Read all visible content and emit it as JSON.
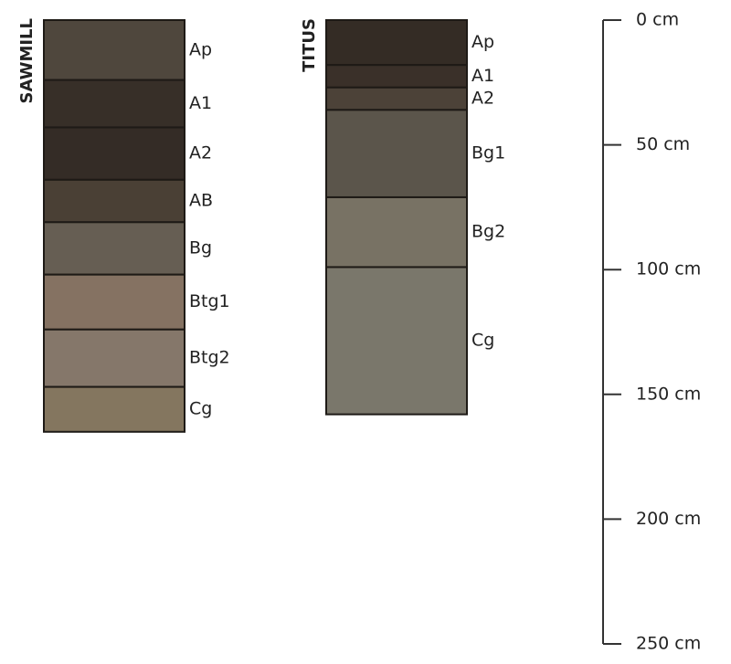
{
  "chart_data": {
    "type": "profile",
    "ylim": [
      0,
      250
    ],
    "yticks": [
      {
        "value": 0,
        "label": "0 cm"
      },
      {
        "value": 50,
        "label": "50 cm"
      },
      {
        "value": 100,
        "label": "100 cm"
      },
      {
        "value": 150,
        "label": "150 cm"
      },
      {
        "value": 200,
        "label": "200 cm"
      },
      {
        "value": 250,
        "label": "250 cm"
      }
    ],
    "series": [
      {
        "name": "SAWMILL",
        "horizons": [
          "Ap",
          "A1",
          "A2",
          "AB",
          "Bg",
          "Btg1",
          "Btg2",
          "Cg"
        ],
        "boundaries": [
          0,
          24,
          43,
          64,
          81,
          102,
          124,
          147,
          165
        ],
        "colors": [
          "#4f473d",
          "#372f28",
          "#342c26",
          "#4a4035",
          "#665e53",
          "#857262",
          "#85776a",
          "#84765f"
        ]
      },
      {
        "name": "TITUS",
        "horizons": [
          "Ap",
          "A1",
          "A2",
          "Bg1",
          "Bg2",
          "Cg"
        ],
        "boundaries": [
          0,
          18,
          27,
          36,
          71,
          99,
          158
        ],
        "colors": [
          "#342c25",
          "#3a3029",
          "#4c4238",
          "#5b554b",
          "#787264",
          "#7a776b"
        ]
      }
    ]
  }
}
